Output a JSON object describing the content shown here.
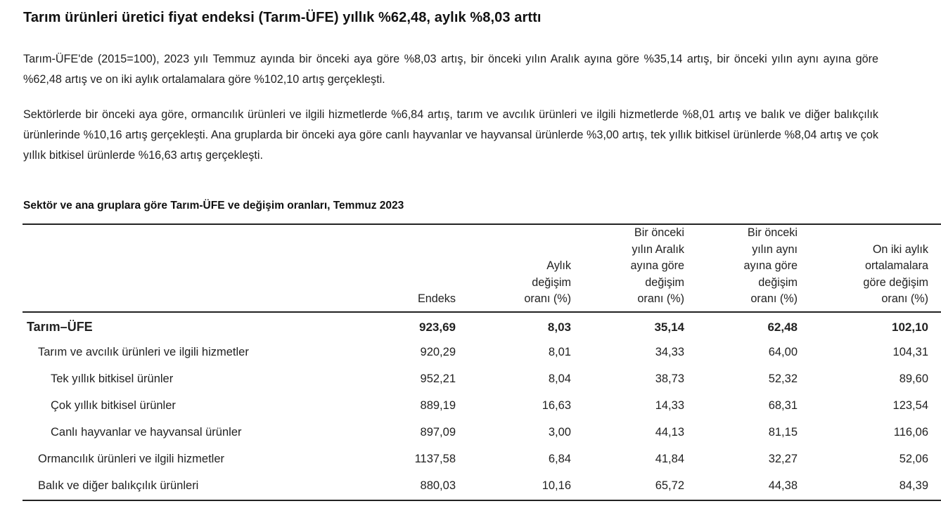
{
  "headline": "Tarım ürünleri üretici fiyat endeksi (Tarım-ÜFE) yıllık %62,48, aylık %8,03 arttı",
  "paragraphs": [
    "Tarım-ÜFE'de (2015=100), 2023 yılı Temmuz ayında bir önceki aya göre %8,03 artış, bir önceki yılın Aralık ayına göre %35,14 artış, bir önceki yılın aynı ayına göre %62,48 artış ve on iki aylık ortalamalara göre %102,10 artış gerçekleşti.",
    "Sektörlerde bir önceki aya göre, ormancılık ürünleri ve ilgili hizmetlerde %6,84 artış, tarım ve avcılık ürünleri ve ilgili hizmetlerde %8,01 artış ve balık ve diğer balıkçılık ürünlerinde %10,16 artış gerçekleşti. Ana gruplarda bir önceki aya göre canlı hayvanlar ve hayvansal ürünlerde %3,00 artış, tek yıllık bitkisel ürünlerde %8,04 artış ve çok yıllık bitkisel ürünlerde %16,63 artış gerçekleşti."
  ],
  "table": {
    "caption": "Sektör ve ana gruplara göre Tarım-ÜFE ve değişim oranları, Temmuz 2023",
    "headers": [
      "",
      "Endeks",
      "Aylık değişim oranı (%)",
      "Bir önceki yılın Aralık ayına göre değişim oranı (%)",
      "Bir önceki yılın aynı ayına göre değişim oranı (%)",
      "On iki aylık ortalamalara göre değişim oranı (%)"
    ],
    "header_lines": [
      [
        ""
      ],
      [
        "Endeks"
      ],
      [
        "Aylık",
        "değişim",
        "oranı (%)"
      ],
      [
        "Bir önceki",
        "yılın Aralık",
        "ayına göre",
        "değişim",
        "oranı (%)"
      ],
      [
        "Bir önceki",
        "yılın aynı",
        "ayına göre",
        "değişim",
        "oranı (%)"
      ],
      [
        "On iki aylık",
        "ortalamalara",
        "göre değişim",
        "oranı (%)"
      ]
    ],
    "rows": [
      {
        "label": "Tarım–ÜFE",
        "level": "total",
        "values": [
          "923,69",
          "8,03",
          "35,14",
          "62,48",
          "102,10"
        ]
      },
      {
        "label": "Tarım ve avcılık ürünleri ve ilgili hizmetler",
        "level": "lvl1",
        "values": [
          "920,29",
          "8,01",
          "34,33",
          "64,00",
          "104,31"
        ]
      },
      {
        "label": "Tek yıllık bitkisel ürünler",
        "level": "lvl2",
        "values": [
          "952,21",
          "8,04",
          "38,73",
          "52,32",
          "89,60"
        ]
      },
      {
        "label": "Çok yıllık bitkisel ürünler",
        "level": "lvl2",
        "values": [
          "889,19",
          "16,63",
          "14,33",
          "68,31",
          "123,54"
        ]
      },
      {
        "label": "Canlı hayvanlar ve hayvansal ürünler",
        "level": "lvl2",
        "values": [
          "897,09",
          "3,00",
          "44,13",
          "81,15",
          "116,06"
        ]
      },
      {
        "label": "Ormancılık ürünleri ve ilgili hizmetler",
        "level": "lvl1b",
        "values": [
          "1137,58",
          "6,84",
          "41,84",
          "32,27",
          "52,06"
        ]
      },
      {
        "label": "Balık ve diğer balıkçılık ürünleri",
        "level": "lvl1b",
        "values": [
          "880,03",
          "10,16",
          "65,72",
          "44,38",
          "84,39"
        ]
      }
    ]
  }
}
